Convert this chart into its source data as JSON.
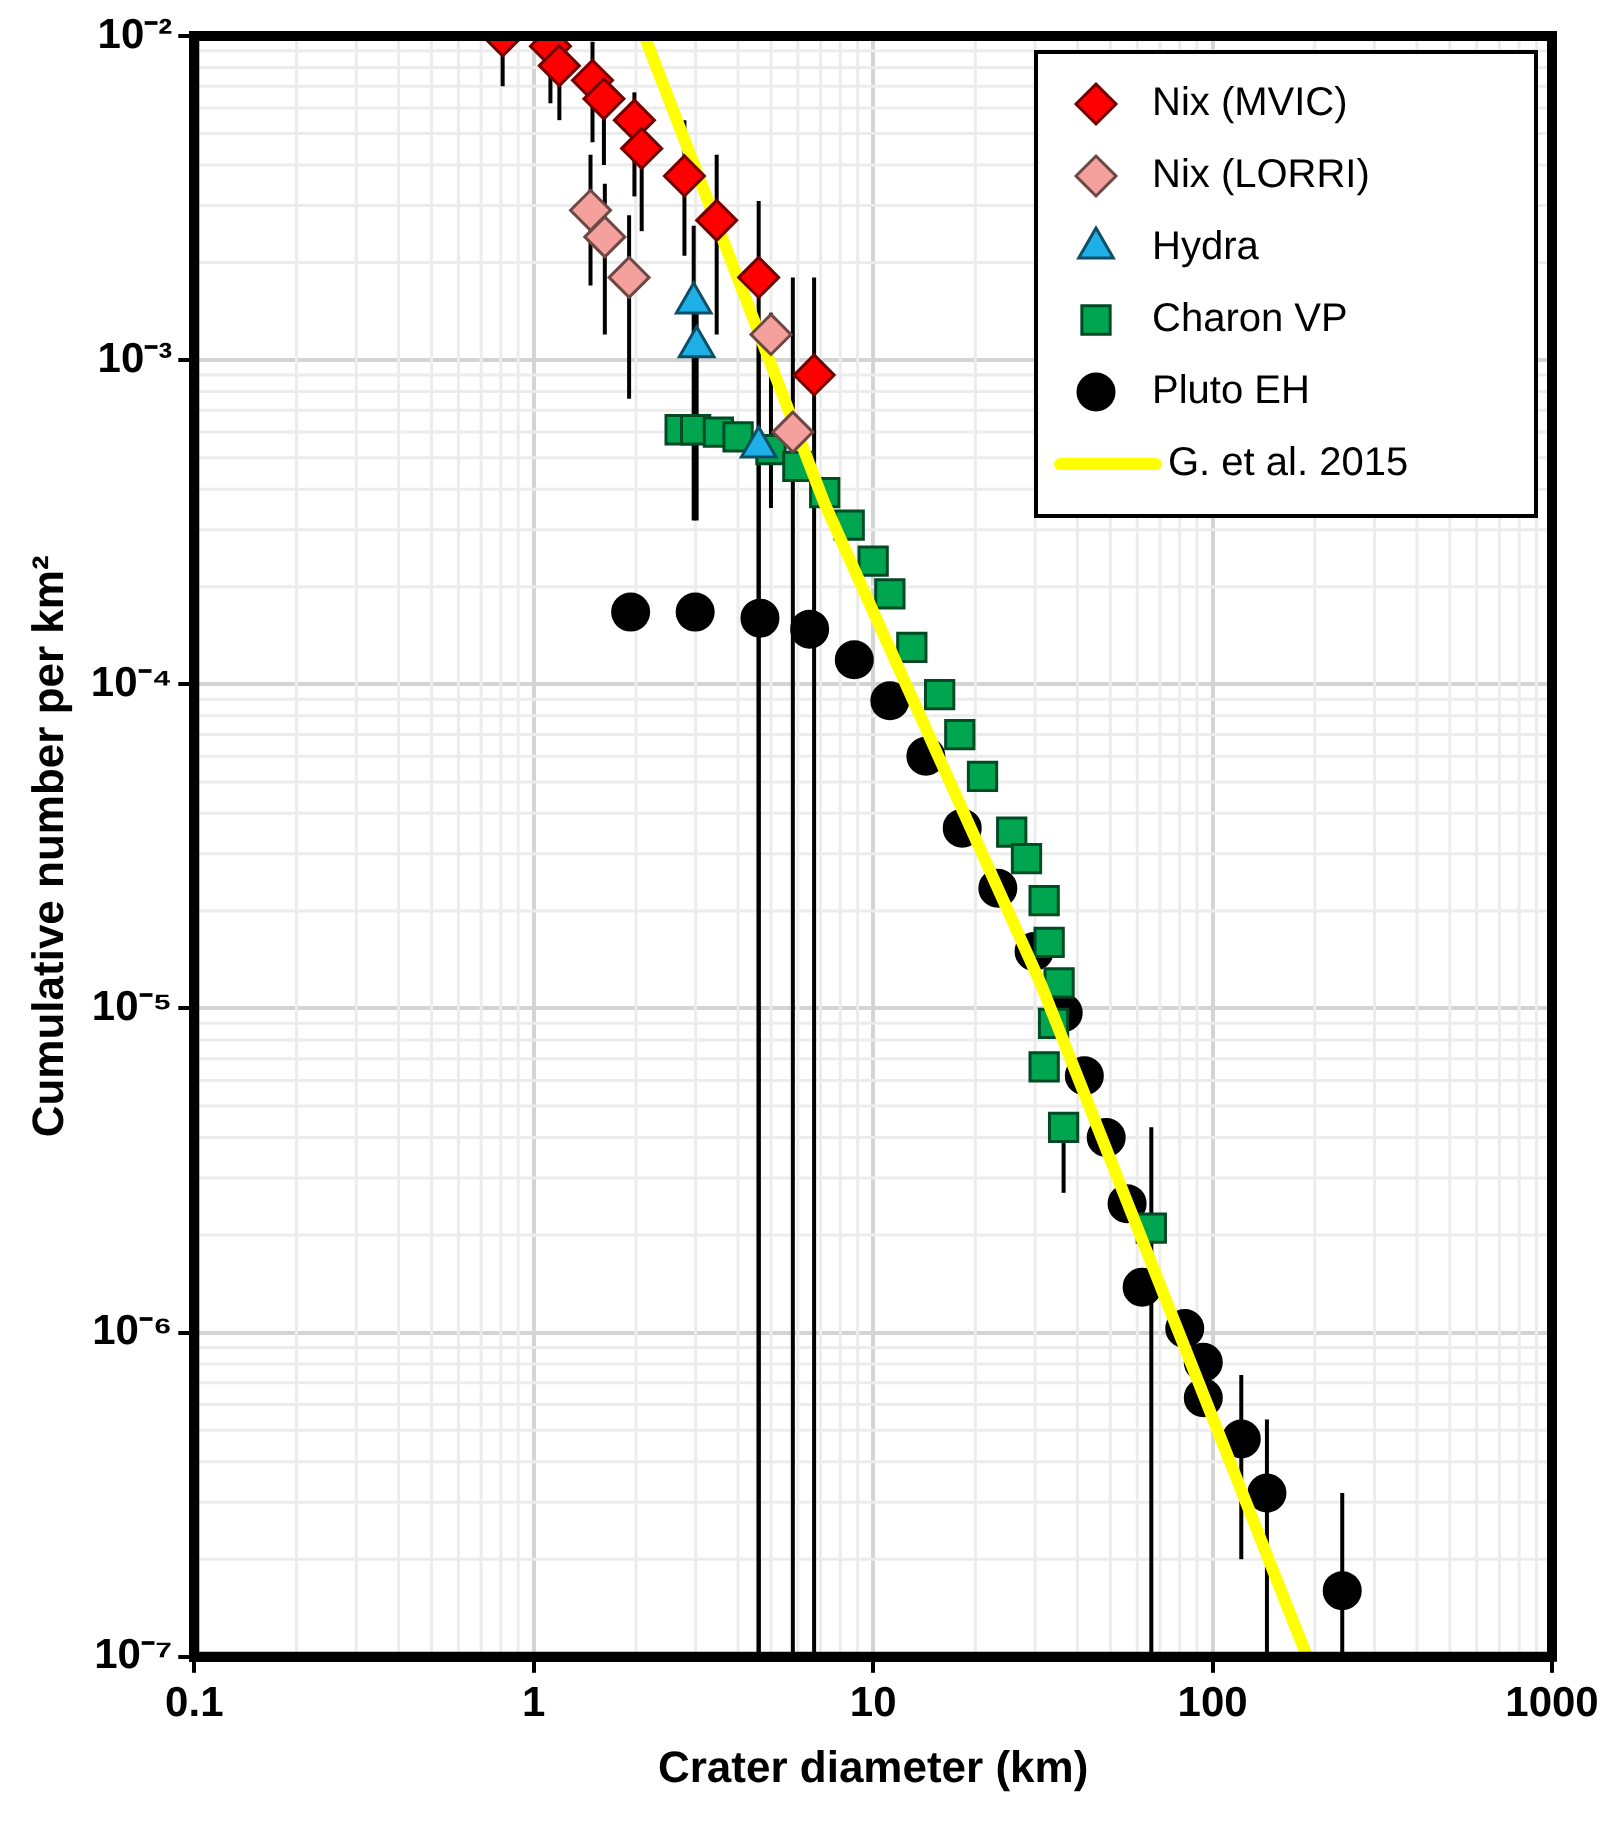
{
  "chart_data": {
    "type": "scatter",
    "xlabel": "Crater diameter (km)",
    "ylabel": "Cumulative number per km²",
    "log": "xy",
    "grid": true,
    "legend": "top right",
    "xlim": [
      0.1,
      1000
    ],
    "xticks": [
      0.1,
      1,
      10,
      100,
      1000
    ],
    "ylim": [
      1e-07,
      0.01
    ],
    "yticks": [
      {
        "value": 1e-07,
        "label": "10⁻⁷"
      },
      {
        "value": 1e-06,
        "label": "10⁻⁶"
      },
      {
        "value": 1e-05,
        "label": "10⁻⁵"
      },
      {
        "value": 0.0001,
        "label": "10⁻⁴"
      },
      {
        "value": 0.001,
        "label": "10⁻³"
      },
      {
        "value": 0.01,
        "label": "10⁻²"
      }
    ],
    "series": [
      {
        "name": "Nix (MVIC)",
        "marker": "diamond",
        "color": "#ff0000",
        "x": [
          0.81,
          1.12,
          1.19,
          1.49,
          1.61,
          1.98,
          2.08,
          2.78,
          3.46,
          4.6,
          6.7
        ],
        "values": [
          0.01,
          0.0093,
          0.0081,
          0.0073,
          0.0064,
          0.0055,
          0.0045,
          0.0037,
          0.0027,
          0.0018,
          0.0009
        ],
        "errors": [
          [
            0.007,
            0.01
          ],
          [
            0.0062,
            0.01
          ],
          [
            0.0055,
            0.01
          ],
          [
            0.0047,
            0.0096
          ],
          [
            0.004,
            0.0076
          ],
          [
            0.0032,
            0.0067
          ],
          [
            0.0025,
            0.0055
          ],
          [
            0.0021,
            0.0055
          ],
          [
            0.0012,
            0.0043
          ],
          [
            1e-07,
            0.0031
          ],
          [
            1e-07,
            0.0018
          ]
        ]
      },
      {
        "name": "Nix (LORRI)",
        "marker": "diamond",
        "color": "#f4a09c",
        "x": [
          1.47,
          1.62,
          1.91,
          5.0,
          5.8
        ],
        "values": [
          0.0029,
          0.0024,
          0.0018,
          0.0012,
          0.0006
        ],
        "errors": [
          [
            0.0017,
            0.0043
          ],
          [
            0.0012,
            0.0035
          ],
          [
            0.00076,
            0.0028
          ],
          [
            0.00035,
            0.0014
          ],
          [
            1e-07,
            0.0018
          ]
        ]
      },
      {
        "name": "Hydra",
        "marker": "triangle",
        "color": "#20b0e8",
        "x": [
          2.96,
          3.02,
          4.6
        ],
        "values": [
          0.0015,
          0.0011,
          0.00054
        ],
        "errors": [
          [
            0.00032,
            0.0026
          ],
          [
            0.00032,
            0.0016
          ],
          [
            1e-07,
            0.0011
          ]
        ]
      },
      {
        "name": "Charon VP",
        "marker": "square",
        "color": "#00a550",
        "x": [
          2.7,
          3.0,
          3.5,
          4.0,
          5.0,
          6.0,
          7.2,
          8.5,
          10,
          11.2,
          13,
          15.7,
          18,
          21,
          25.6,
          28.3,
          31.9,
          33,
          35.3,
          34,
          31.9,
          36.4,
          66
        ],
        "values": [
          0.00061,
          0.00061,
          0.0006,
          0.00058,
          0.00053,
          0.00047,
          0.00039,
          0.00031,
          0.00024,
          0.00019,
          0.00013,
          9.3e-05,
          7e-05,
          5.2e-05,
          3.5e-05,
          2.9e-05,
          2.15e-05,
          1.6e-05,
          1.2e-05,
          9e-06,
          6.6e-06,
          4.3e-06,
          2.1e-06
        ],
        "errors": [
          null,
          null,
          null,
          null,
          null,
          null,
          null,
          null,
          null,
          null,
          null,
          null,
          null,
          null,
          null,
          null,
          null,
          null,
          null,
          null,
          null,
          [
            2.7e-06,
            4.3e-06
          ],
          [
            1e-07,
            4.3e-06
          ]
        ]
      },
      {
        "name": "Pluto EH",
        "marker": "circle",
        "color": "#000000",
        "x": [
          1.93,
          2.99,
          4.64,
          6.5,
          8.8,
          11.2,
          14.3,
          18.3,
          23.3,
          29.8,
          36.3,
          41.9,
          48.6,
          56,
          62,
          82.8,
          93.9,
          93.9,
          121.5,
          144.6,
          241
        ],
        "values": [
          0.000167,
          0.000167,
          0.00016,
          0.000148,
          0.000119,
          8.9e-05,
          6e-05,
          3.6e-05,
          2.35e-05,
          1.5e-05,
          9.7e-06,
          6.2e-06,
          4e-06,
          2.5e-06,
          1.38e-06,
          1.03e-06,
          8.1e-07,
          6.3e-07,
          4.7e-07,
          3.2e-07,
          1.6e-07
        ],
        "errors": [
          null,
          null,
          null,
          null,
          null,
          null,
          null,
          null,
          null,
          null,
          null,
          null,
          null,
          null,
          null,
          null,
          null,
          null,
          [
            2e-07,
            7.4e-07
          ],
          [
            1e-07,
            5.4e-07
          ],
          [
            1e-07,
            3.2e-07
          ]
        ]
      },
      {
        "name": "G. et al. 2015",
        "type": "line",
        "marker": "none",
        "line_style": "solid",
        "color": "#ffff00",
        "x": [
          2.12,
          7.2,
          31.2,
          190
        ],
        "values": [
          0.01,
          0.00036,
          1.19e-05,
          1e-07
        ]
      }
    ]
  }
}
